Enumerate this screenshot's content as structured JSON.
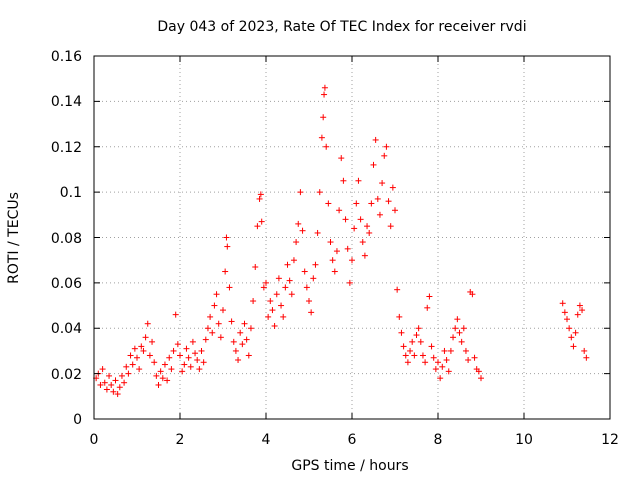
{
  "chart_data": {
    "type": "scatter",
    "title": "Day 043 of 2023, Rate Of TEC Index for receiver rvdi",
    "xlabel": "GPS time / hours",
    "ylabel": "ROTI / TECUs",
    "xlim": [
      0,
      12
    ],
    "ylim": [
      0,
      0.16
    ],
    "xticks": [
      "0",
      "2",
      "4",
      "6",
      "8",
      "10",
      "12"
    ],
    "yticks": [
      "0",
      "0.02",
      "0.04",
      "0.06",
      "0.08",
      "0.1",
      "0.12",
      "0.14",
      "0.16"
    ],
    "grid": true,
    "marker": "+",
    "colors": {
      "points": "#ff0000",
      "grid": "#a0a0a0",
      "axis": "#000000"
    },
    "series": [
      {
        "name": "ROTI",
        "points": [
          [
            0.05,
            0.018
          ],
          [
            0.1,
            0.02
          ],
          [
            0.15,
            0.015
          ],
          [
            0.2,
            0.022
          ],
          [
            0.25,
            0.016
          ],
          [
            0.3,
            0.013
          ],
          [
            0.35,
            0.019
          ],
          [
            0.4,
            0.015
          ],
          [
            0.45,
            0.012
          ],
          [
            0.5,
            0.017
          ],
          [
            0.55,
            0.011
          ],
          [
            0.6,
            0.014
          ],
          [
            0.65,
            0.019
          ],
          [
            0.7,
            0.016
          ],
          [
            0.75,
            0.023
          ],
          [
            0.8,
            0.02
          ],
          [
            0.85,
            0.028
          ],
          [
            0.9,
            0.024
          ],
          [
            0.95,
            0.031
          ],
          [
            1.0,
            0.027
          ],
          [
            1.05,
            0.022
          ],
          [
            1.1,
            0.032
          ],
          [
            1.15,
            0.03
          ],
          [
            1.2,
            0.036
          ],
          [
            1.25,
            0.042
          ],
          [
            1.3,
            0.028
          ],
          [
            1.35,
            0.034
          ],
          [
            1.4,
            0.025
          ],
          [
            1.45,
            0.019
          ],
          [
            1.5,
            0.015
          ],
          [
            1.55,
            0.021
          ],
          [
            1.6,
            0.018
          ],
          [
            1.65,
            0.024
          ],
          [
            1.7,
            0.017
          ],
          [
            1.75,
            0.027
          ],
          [
            1.8,
            0.022
          ],
          [
            1.85,
            0.03
          ],
          [
            1.9,
            0.046
          ],
          [
            1.95,
            0.033
          ],
          [
            2.0,
            0.028
          ],
          [
            2.05,
            0.021
          ],
          [
            2.1,
            0.024
          ],
          [
            2.15,
            0.031
          ],
          [
            2.2,
            0.027
          ],
          [
            2.25,
            0.023
          ],
          [
            2.3,
            0.034
          ],
          [
            2.35,
            0.029
          ],
          [
            2.4,
            0.026
          ],
          [
            2.45,
            0.022
          ],
          [
            2.5,
            0.03
          ],
          [
            2.55,
            0.025
          ],
          [
            2.6,
            0.035
          ],
          [
            2.65,
            0.04
          ],
          [
            2.7,
            0.045
          ],
          [
            2.75,
            0.038
          ],
          [
            2.8,
            0.05
          ],
          [
            2.85,
            0.055
          ],
          [
            2.9,
            0.042
          ],
          [
            2.95,
            0.036
          ],
          [
            3.0,
            0.048
          ],
          [
            3.05,
            0.065
          ],
          [
            3.08,
            0.08
          ],
          [
            3.1,
            0.076
          ],
          [
            3.15,
            0.058
          ],
          [
            3.2,
            0.043
          ],
          [
            3.25,
            0.034
          ],
          [
            3.3,
            0.03
          ],
          [
            3.35,
            0.026
          ],
          [
            3.4,
            0.038
          ],
          [
            3.45,
            0.033
          ],
          [
            3.5,
            0.042
          ],
          [
            3.55,
            0.035
          ],
          [
            3.6,
            0.028
          ],
          [
            3.65,
            0.04
          ],
          [
            3.7,
            0.052
          ],
          [
            3.75,
            0.067
          ],
          [
            3.8,
            0.085
          ],
          [
            3.85,
            0.097
          ],
          [
            3.88,
            0.099
          ],
          [
            3.9,
            0.087
          ],
          [
            3.95,
            0.058
          ],
          [
            4.0,
            0.06
          ],
          [
            4.05,
            0.045
          ],
          [
            4.1,
            0.052
          ],
          [
            4.15,
            0.048
          ],
          [
            4.2,
            0.041
          ],
          [
            4.25,
            0.055
          ],
          [
            4.3,
            0.062
          ],
          [
            4.35,
            0.05
          ],
          [
            4.4,
            0.045
          ],
          [
            4.45,
            0.058
          ],
          [
            4.5,
            0.068
          ],
          [
            4.55,
            0.061
          ],
          [
            4.6,
            0.055
          ],
          [
            4.65,
            0.07
          ],
          [
            4.7,
            0.078
          ],
          [
            4.75,
            0.086
          ],
          [
            4.8,
            0.1
          ],
          [
            4.85,
            0.083
          ],
          [
            4.9,
            0.065
          ],
          [
            4.95,
            0.058
          ],
          [
            5.0,
            0.052
          ],
          [
            5.05,
            0.047
          ],
          [
            5.1,
            0.062
          ],
          [
            5.15,
            0.068
          ],
          [
            5.2,
            0.082
          ],
          [
            5.25,
            0.1
          ],
          [
            5.3,
            0.124
          ],
          [
            5.33,
            0.133
          ],
          [
            5.35,
            0.143
          ],
          [
            5.37,
            0.146
          ],
          [
            5.4,
            0.12
          ],
          [
            5.45,
            0.095
          ],
          [
            5.5,
            0.078
          ],
          [
            5.55,
            0.07
          ],
          [
            5.6,
            0.065
          ],
          [
            5.65,
            0.074
          ],
          [
            5.7,
            0.092
          ],
          [
            5.75,
            0.115
          ],
          [
            5.8,
            0.105
          ],
          [
            5.85,
            0.088
          ],
          [
            5.9,
            0.075
          ],
          [
            5.95,
            0.06
          ],
          [
            6.0,
            0.07
          ],
          [
            6.05,
            0.084
          ],
          [
            6.1,
            0.095
          ],
          [
            6.15,
            0.105
          ],
          [
            6.2,
            0.088
          ],
          [
            6.25,
            0.078
          ],
          [
            6.3,
            0.072
          ],
          [
            6.35,
            0.085
          ],
          [
            6.4,
            0.082
          ],
          [
            6.45,
            0.095
          ],
          [
            6.5,
            0.112
          ],
          [
            6.55,
            0.123
          ],
          [
            6.6,
            0.097
          ],
          [
            6.65,
            0.09
          ],
          [
            6.7,
            0.104
          ],
          [
            6.75,
            0.116
          ],
          [
            6.8,
            0.12
          ],
          [
            6.85,
            0.096
          ],
          [
            6.9,
            0.085
          ],
          [
            6.95,
            0.102
          ],
          [
            7.0,
            0.092
          ],
          [
            7.05,
            0.057
          ],
          [
            7.1,
            0.045
          ],
          [
            7.15,
            0.038
          ],
          [
            7.2,
            0.032
          ],
          [
            7.25,
            0.028
          ],
          [
            7.3,
            0.025
          ],
          [
            7.35,
            0.03
          ],
          [
            7.4,
            0.034
          ],
          [
            7.45,
            0.028
          ],
          [
            7.5,
            0.037
          ],
          [
            7.55,
            0.04
          ],
          [
            7.6,
            0.034
          ],
          [
            7.65,
            0.028
          ],
          [
            7.7,
            0.025
          ],
          [
            7.75,
            0.049
          ],
          [
            7.8,
            0.054
          ],
          [
            7.85,
            0.032
          ],
          [
            7.9,
            0.027
          ],
          [
            7.95,
            0.022
          ],
          [
            8.0,
            0.025
          ],
          [
            8.05,
            0.018
          ],
          [
            8.1,
            0.023
          ],
          [
            8.15,
            0.03
          ],
          [
            8.2,
            0.026
          ],
          [
            8.25,
            0.021
          ],
          [
            8.3,
            0.03
          ],
          [
            8.35,
            0.036
          ],
          [
            8.4,
            0.04
          ],
          [
            8.45,
            0.044
          ],
          [
            8.5,
            0.038
          ],
          [
            8.55,
            0.034
          ],
          [
            8.6,
            0.04
          ],
          [
            8.65,
            0.03
          ],
          [
            8.7,
            0.026
          ],
          [
            8.75,
            0.056
          ],
          [
            8.8,
            0.055
          ],
          [
            8.85,
            0.027
          ],
          [
            8.9,
            0.022
          ],
          [
            8.95,
            0.021
          ],
          [
            9.0,
            0.018
          ],
          [
            10.9,
            0.051
          ],
          [
            10.95,
            0.047
          ],
          [
            11.0,
            0.044
          ],
          [
            11.05,
            0.04
          ],
          [
            11.1,
            0.036
          ],
          [
            11.15,
            0.032
          ],
          [
            11.2,
            0.038
          ],
          [
            11.25,
            0.046
          ],
          [
            11.3,
            0.05
          ],
          [
            11.35,
            0.048
          ],
          [
            11.4,
            0.03
          ],
          [
            11.45,
            0.027
          ]
        ]
      }
    ]
  }
}
